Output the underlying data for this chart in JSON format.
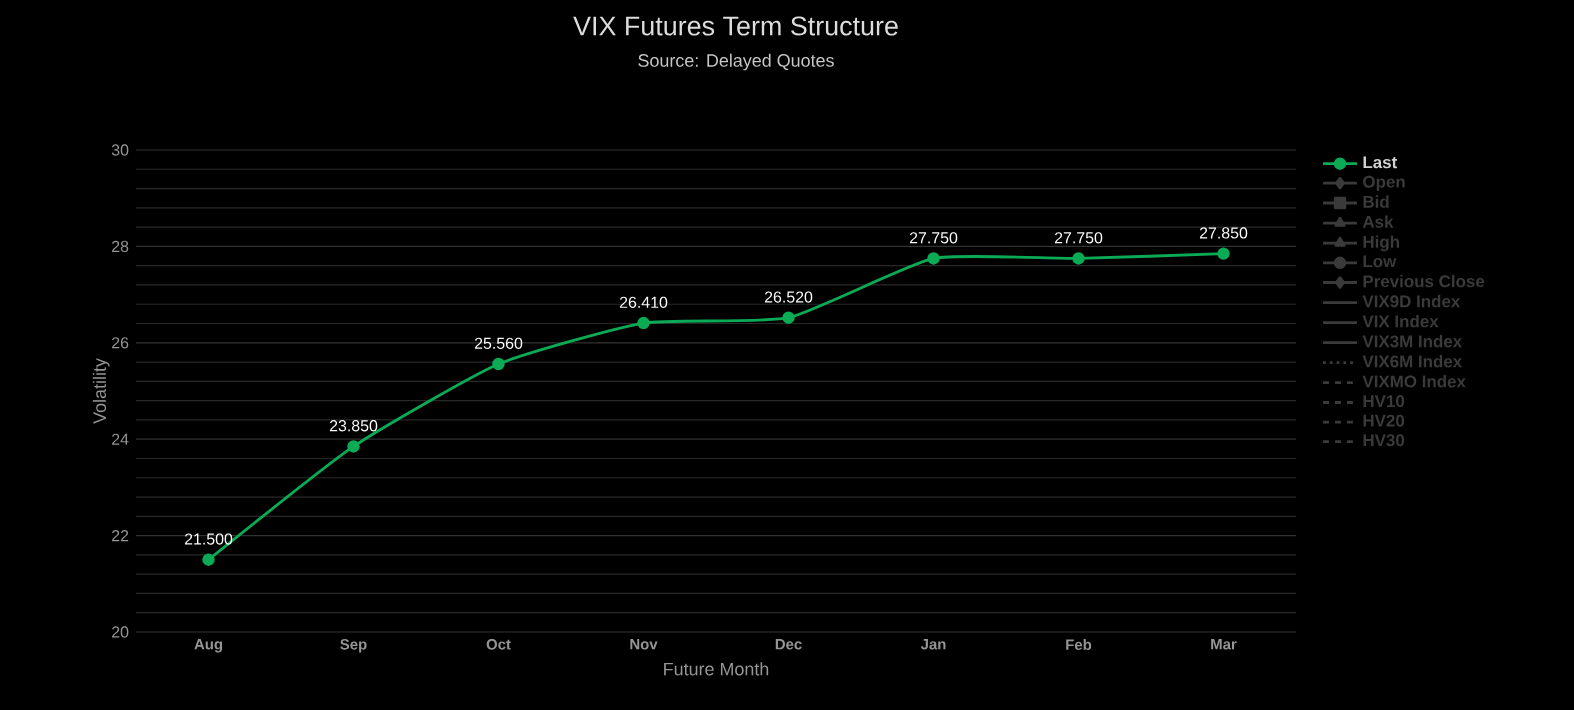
{
  "chart_data": {
    "type": "line",
    "title": "VIX Futures Term Structure",
    "annotations": [
      "Source: Delayed Quotes"
    ],
    "xlabel": "Future Month",
    "ylabel": "Volatility",
    "categories": [
      "Aug",
      "Sep",
      "Oct",
      "Nov",
      "Dec",
      "Jan",
      "Feb",
      "Mar"
    ],
    "series": [
      {
        "name": "Last",
        "color": "#0bab56",
        "marker": "circle",
        "line_style": "solid",
        "values": [
          21.5,
          23.85,
          25.56,
          26.41,
          26.52,
          27.75,
          27.75,
          27.85
        ],
        "value_labels": [
          "21.500",
          "23.850",
          "25.560",
          "26.410",
          "26.520",
          "27.750",
          "27.750",
          "27.850"
        ]
      },
      {
        "name": "Open",
        "color": "#3a3a3a",
        "marker": "diamond",
        "line_style": "solid",
        "values": [
          null,
          null,
          null,
          null,
          null,
          null,
          null,
          null
        ]
      },
      {
        "name": "Bid",
        "color": "#3a3a3a",
        "marker": "square",
        "line_style": "solid",
        "values": [
          null,
          null,
          null,
          null,
          null,
          null,
          null,
          null
        ]
      },
      {
        "name": "Ask",
        "color": "#3a3a3a",
        "marker": "triangle",
        "line_style": "solid",
        "values": [
          null,
          null,
          null,
          null,
          null,
          null,
          null,
          null
        ]
      },
      {
        "name": "High",
        "color": "#3a3a3a",
        "marker": "triangle",
        "line_style": "solid",
        "values": [
          null,
          null,
          null,
          null,
          null,
          null,
          null,
          null
        ]
      },
      {
        "name": "Low",
        "color": "#3a3a3a",
        "marker": "circle",
        "line_style": "solid",
        "values": [
          null,
          null,
          null,
          null,
          null,
          null,
          null,
          null
        ]
      },
      {
        "name": "Previous Close",
        "color": "#3a3a3a",
        "marker": "diamond",
        "line_style": "solid",
        "values": [
          null,
          null,
          null,
          null,
          null,
          null,
          null,
          null
        ]
      },
      {
        "name": "VIX9D Index",
        "color": "#3a3a3a",
        "marker": "none",
        "line_style": "solid",
        "values": [
          null,
          null,
          null,
          null,
          null,
          null,
          null,
          null
        ]
      },
      {
        "name": "VIX Index",
        "color": "#3a3a3a",
        "marker": "none",
        "line_style": "solid",
        "values": [
          null,
          null,
          null,
          null,
          null,
          null,
          null,
          null
        ]
      },
      {
        "name": "VIX3M Index",
        "color": "#3a3a3a",
        "marker": "none",
        "line_style": "solid",
        "values": [
          null,
          null,
          null,
          null,
          null,
          null,
          null,
          null
        ]
      },
      {
        "name": "VIX6M Index",
        "color": "#3a3a3a",
        "marker": "none",
        "line_style": "dotted",
        "values": [
          null,
          null,
          null,
          null,
          null,
          null,
          null,
          null
        ]
      },
      {
        "name": "VIXMO Index",
        "color": "#3a3a3a",
        "marker": "none",
        "line_style": "dashed",
        "values": [
          null,
          null,
          null,
          null,
          null,
          null,
          null,
          null
        ]
      },
      {
        "name": "HV10",
        "color": "#3a3a3a",
        "marker": "none",
        "line_style": "dashed",
        "values": [
          null,
          null,
          null,
          null,
          null,
          null,
          null,
          null
        ]
      },
      {
        "name": "HV20",
        "color": "#3a3a3a",
        "marker": "none",
        "line_style": "dashed",
        "values": [
          null,
          null,
          null,
          null,
          null,
          null,
          null,
          null
        ]
      },
      {
        "name": "HV30",
        "color": "#3a3a3a",
        "marker": "none",
        "line_style": "dashed",
        "values": [
          null,
          null,
          null,
          null,
          null,
          null,
          null,
          null
        ]
      }
    ],
    "ylim": [
      20,
      30
    ],
    "yticks": [
      20,
      22,
      24,
      26,
      28,
      30
    ],
    "grid": "y",
    "legend": "right"
  }
}
